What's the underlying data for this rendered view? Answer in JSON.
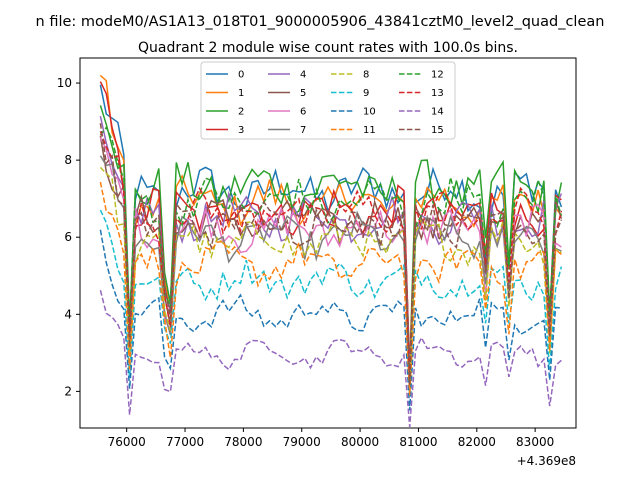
{
  "chart_data": {
    "type": "line",
    "suptitle": "n file: modeM0/AS1A13_018T01_9000005906_43841cztM0_level2_quad_clean",
    "title": "Quadrant 2 module wise count rates with 100.0s bins.",
    "xlabel": "",
    "ylabel": "",
    "offset_text": "+4.369e8",
    "xlim": [
      75200,
      83700
    ],
    "ylim": [
      1.05,
      10.65
    ],
    "xticks": [
      76000,
      77000,
      78000,
      79000,
      80000,
      81000,
      82000,
      83000
    ],
    "yticks": [
      2,
      4,
      6,
      8,
      10
    ],
    "grid": false,
    "legend": {
      "placement": "upper-center",
      "columns": 4
    },
    "x": [
      75550,
      75650,
      75750,
      75850,
      75950,
      76050,
      76150,
      76250,
      76350,
      76450,
      76550,
      76650,
      76750,
      76850,
      76950,
      77050,
      77150,
      77250,
      77350,
      77450,
      77550,
      77650,
      77750,
      77850,
      77950,
      78050,
      78150,
      78250,
      78350,
      78450,
      78550,
      78650,
      78750,
      78850,
      78950,
      79050,
      79150,
      79250,
      79350,
      79450,
      79550,
      79650,
      79750,
      79850,
      79950,
      80050,
      80150,
      80250,
      80350,
      80450,
      80550,
      80650,
      80750,
      80850,
      80950,
      81050,
      81150,
      81250,
      81350,
      81450,
      81550,
      81650,
      81750,
      81850,
      81950,
      82050,
      82150,
      82250,
      82350,
      82450,
      82550,
      82650,
      82750,
      82850,
      82950,
      83050,
      83150,
      83250,
      83350,
      83450
    ],
    "dropouts": [
      {
        "x": 76050,
        "factor": 0.5
      },
      {
        "x": 76650,
        "factor": 0.7
      },
      {
        "x": 76750,
        "factor": 0.6
      },
      {
        "x": 80850,
        "factor": 0.35
      },
      {
        "x": 82150,
        "factor": 0.78
      },
      {
        "x": 82550,
        "factor": 0.72
      },
      {
        "x": 83250,
        "factor": 0.55
      }
    ],
    "series": [
      {
        "name": "0",
        "color": "#1f77b4",
        "dash": "solid",
        "level": 7.2,
        "start": 9.8
      },
      {
        "name": "1",
        "color": "#ff7f0e",
        "dash": "solid",
        "level": 6.9,
        "start": 10.0
      },
      {
        "name": "2",
        "color": "#2ca02c",
        "dash": "solid",
        "level": 7.3,
        "start": 9.6
      },
      {
        "name": "3",
        "color": "#d62728",
        "dash": "solid",
        "level": 6.7,
        "start": 10.2
      },
      {
        "name": "4",
        "color": "#9467bd",
        "dash": "solid",
        "level": 6.5,
        "start": 8.9
      },
      {
        "name": "5",
        "color": "#8c564b",
        "dash": "solid",
        "level": 6.4,
        "start": 8.6
      },
      {
        "name": "6",
        "color": "#e377c2",
        "dash": "solid",
        "level": 6.2,
        "start": 8.4
      },
      {
        "name": "7",
        "color": "#7f7f7f",
        "dash": "solid",
        "level": 6.0,
        "start": 8.2
      },
      {
        "name": "8",
        "color": "#bcbd22",
        "dash": "dashed",
        "level": 5.9,
        "start": 7.8
      },
      {
        "name": "9",
        "color": "#17becf",
        "dash": "dashed",
        "level": 4.9,
        "start": 6.6
      },
      {
        "name": "10",
        "color": "#1f77b4",
        "dash": "dashed",
        "level": 4.0,
        "start": 6.1
      },
      {
        "name": "11",
        "color": "#ff7f0e",
        "dash": "dashed",
        "level": 5.3,
        "start": 7.5
      },
      {
        "name": "12",
        "color": "#2ca02c",
        "dash": "dashed",
        "level": 6.9,
        "start": 9.2
      },
      {
        "name": "13",
        "color": "#d62728",
        "dash": "dashed",
        "level": 6.6,
        "start": 9.0
      },
      {
        "name": "14",
        "color": "#9467bd",
        "dash": "dashed",
        "level": 3.0,
        "start": 4.2
      },
      {
        "name": "15",
        "color": "#8c564b",
        "dash": "dashed",
        "level": 6.4,
        "start": 8.7
      }
    ]
  }
}
